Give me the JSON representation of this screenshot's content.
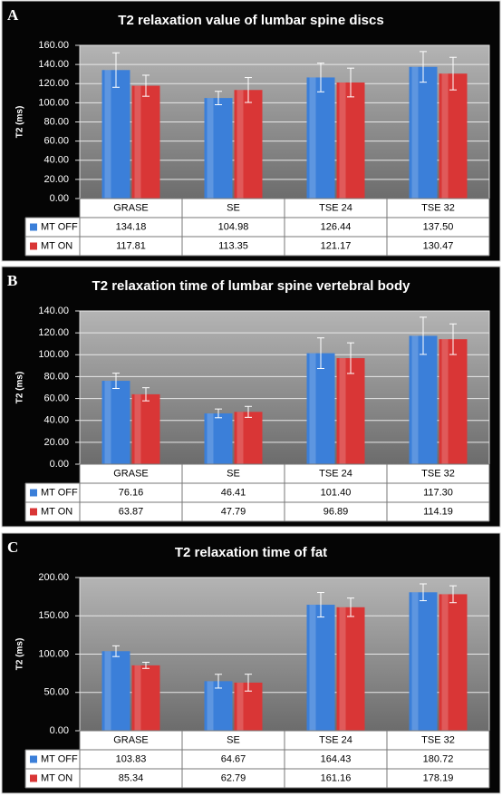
{
  "chart_data": [
    {
      "type": "bar",
      "panel_label": "A",
      "title": "T2 relaxation value of lumbar spine discs",
      "y_label": "T2 (ms)",
      "categories": [
        "GRASE",
        "SE",
        "TSE 24",
        "TSE 32"
      ],
      "series": [
        {
          "name": "MT OFF",
          "color": "#3b7fd9",
          "values": [
            134.18,
            104.98,
            126.44,
            137.5
          ],
          "value_labels": [
            "134.18",
            "104.98",
            "126.44",
            "137.50"
          ],
          "errors": [
            18,
            7,
            15,
            16
          ]
        },
        {
          "name": "MT ON",
          "color": "#d93636",
          "values": [
            117.81,
            113.35,
            121.17,
            130.47
          ],
          "value_labels": [
            "117.81",
            "113.35",
            "121.17",
            "130.47"
          ],
          "errors": [
            11,
            13,
            15,
            17
          ]
        }
      ],
      "ylim": [
        0,
        160
      ],
      "yticks": [
        {
          "value": 0,
          "label": "0.00"
        },
        {
          "value": 20,
          "label": "20.00"
        },
        {
          "value": 40,
          "label": "40.00"
        },
        {
          "value": 60,
          "label": "60.00"
        },
        {
          "value": 80,
          "label": "80.00"
        },
        {
          "value": 100,
          "label": "100.00"
        },
        {
          "value": 120,
          "label": "120.00"
        },
        {
          "value": 140,
          "label": "140.00"
        },
        {
          "value": 160,
          "label": "160.00"
        }
      ],
      "grid": true
    },
    {
      "type": "bar",
      "panel_label": "B",
      "title": "T2 relaxation time of lumbar spine vertebral body",
      "y_label": "T2 (ms)",
      "categories": [
        "GRASE",
        "SE",
        "TSE 24",
        "TSE 32"
      ],
      "series": [
        {
          "name": "MT OFF",
          "color": "#3b7fd9",
          "values": [
            76.16,
            46.41,
            101.4,
            117.3
          ],
          "value_labels": [
            "76.16",
            "46.41",
            "101.40",
            "117.30"
          ],
          "errors": [
            7,
            4,
            14,
            17
          ]
        },
        {
          "name": "MT ON",
          "color": "#d93636",
          "values": [
            63.87,
            47.79,
            96.89,
            114.19
          ],
          "value_labels": [
            "63.87",
            "47.79",
            "96.89",
            "114.19"
          ],
          "errors": [
            6,
            5,
            14,
            14
          ]
        }
      ],
      "ylim": [
        0,
        140
      ],
      "yticks": [
        {
          "value": 0,
          "label": "0.00"
        },
        {
          "value": 20,
          "label": "20.00"
        },
        {
          "value": 40,
          "label": "40.00"
        },
        {
          "value": 60,
          "label": "60.00"
        },
        {
          "value": 80,
          "label": "80.00"
        },
        {
          "value": 100,
          "label": "100.00"
        },
        {
          "value": 120,
          "label": "120.00"
        },
        {
          "value": 140,
          "label": "140.00"
        }
      ],
      "grid": true
    },
    {
      "type": "bar",
      "panel_label": "C",
      "title": "T2 relaxation time of fat",
      "y_label": "T2 (ms)",
      "categories": [
        "GRASE",
        "SE",
        "TSE 24",
        "TSE 32"
      ],
      "series": [
        {
          "name": "MT OFF",
          "color": "#3b7fd9",
          "values": [
            103.83,
            64.67,
            164.43,
            180.72
          ],
          "value_labels": [
            "103.83",
            "64.67",
            "164.43",
            "180.72"
          ],
          "errors": [
            7,
            9,
            16,
            11
          ]
        },
        {
          "name": "MT ON",
          "color": "#d93636",
          "values": [
            85.34,
            62.79,
            161.16,
            178.19
          ],
          "value_labels": [
            "85.34",
            "62.79",
            "161.16",
            "178.19"
          ],
          "errors": [
            4,
            11,
            12,
            11
          ]
        }
      ],
      "ylim": [
        0,
        200
      ],
      "yticks": [
        {
          "value": 0,
          "label": "0.00"
        },
        {
          "value": 50,
          "label": "50.00"
        },
        {
          "value": 100,
          "label": "100.00"
        },
        {
          "value": 150,
          "label": "150.00"
        },
        {
          "value": 200,
          "label": "200.00"
        }
      ],
      "grid": true
    }
  ]
}
